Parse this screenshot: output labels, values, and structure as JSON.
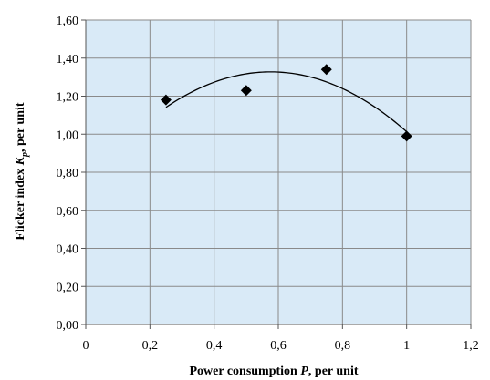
{
  "chart_data": {
    "type": "scatter",
    "xlabel": {
      "before": "Power consumption ",
      "symbol": "P",
      "after": ", per unit"
    },
    "ylabel": {
      "before": "Flicker index ",
      "symbol": "K",
      "subscript": "p",
      "after": ", per unit"
    },
    "xlim": [
      0,
      1.2
    ],
    "ylim": [
      0,
      1.6
    ],
    "x_ticks": [
      "0",
      "0,2",
      "0,4",
      "0,6",
      "0,8",
      "1",
      "1,2"
    ],
    "y_ticks": [
      "0,00",
      "0,20",
      "0,40",
      "0,60",
      "0,80",
      "1,00",
      "1,20",
      "1,40",
      "1,60"
    ],
    "grid": true,
    "plot_background": "#d9eaf7",
    "grid_color": "#8a8a8a",
    "series": [
      {
        "marker": "diamond",
        "color": "#000000",
        "x": [
          0.25,
          0.5,
          0.75,
          1.0
        ],
        "y": [
          1.18,
          1.23,
          1.34,
          0.99
        ]
      }
    ],
    "trendline": {
      "type": "polynomial",
      "order": 2,
      "x_range": [
        0.25,
        1.0
      ],
      "coefficients": [
        0.746,
        2.019,
        -1.752
      ]
    }
  }
}
